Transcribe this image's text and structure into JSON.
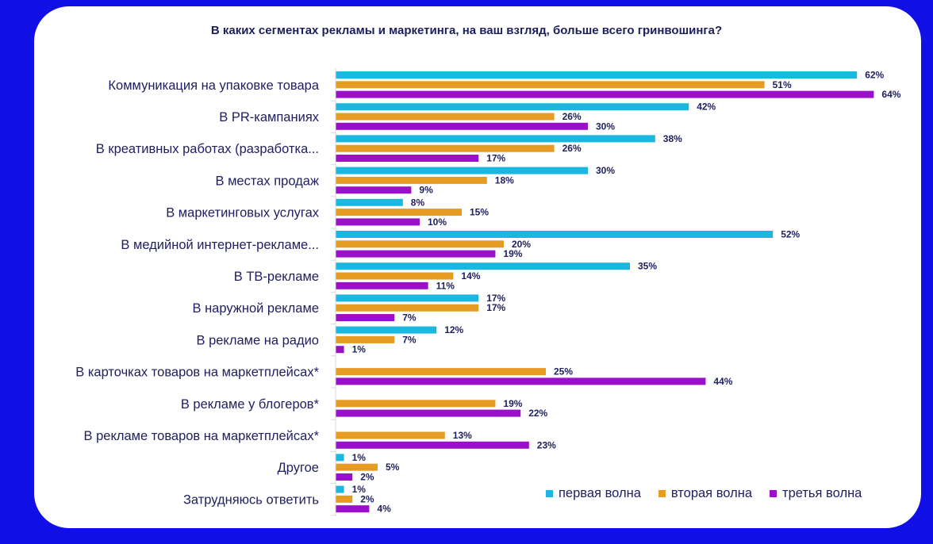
{
  "chart_data": {
    "type": "bar",
    "orientation": "horizontal",
    "title": "В каких сегментах рекламы и маркетинга, на ваш взгляд, больше всего гринвошинга?",
    "xlabel": "",
    "ylabel": "",
    "xlim": [
      0,
      70
    ],
    "unit": "%",
    "categories": [
      "Коммуникация на упаковке товара",
      "В PR-кампаниях",
      "В креативных работах (разработка...",
      "В местах продаж",
      "В маркетинговых услугах",
      "В медийной интернет-рекламе...",
      "В ТВ-рекламе",
      "В наружной рекламе",
      "В рекламе на радио",
      "В карточках товаров на маркетплейсах*",
      "В рекламе у блогеров*",
      "В рекламе товаров на маркетплейсах*",
      "Другое",
      "Затрудняюсь ответить"
    ],
    "series": [
      {
        "name": "первая волна",
        "color": "#1ab8e0",
        "values": [
          62,
          42,
          38,
          30,
          8,
          52,
          35,
          17,
          12,
          null,
          null,
          null,
          1,
          1
        ]
      },
      {
        "name": "вторая волна",
        "color": "#e69b22",
        "values": [
          51,
          26,
          26,
          18,
          15,
          20,
          14,
          17,
          7,
          25,
          19,
          13,
          5,
          2
        ]
      },
      {
        "name": "третья волна",
        "color": "#9a10c8",
        "values": [
          64,
          30,
          17,
          9,
          10,
          19,
          11,
          7,
          1,
          44,
          22,
          23,
          2,
          4
        ]
      }
    ]
  }
}
